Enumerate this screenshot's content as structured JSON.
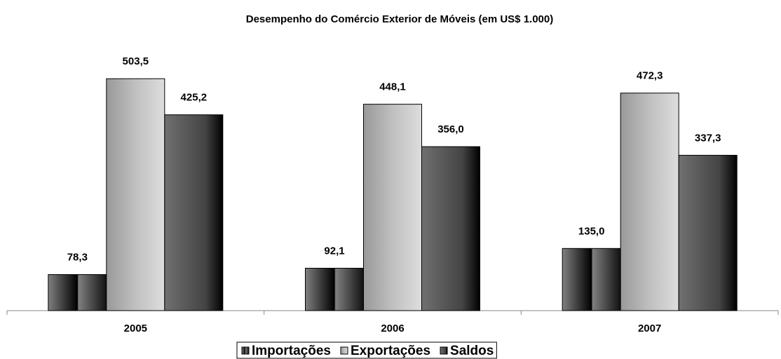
{
  "chart_data": {
    "type": "bar",
    "title": "Desempenho do Comércio Exterior de Móveis (em US$ 1.000)",
    "categories": [
      "2005",
      "2006",
      "2007"
    ],
    "series": [
      {
        "name": "Importações",
        "color": "#808080",
        "values": [
          78.3,
          92.1,
          135.0
        ],
        "value_labels": [
          "78,3",
          "92,1",
          "135,0"
        ]
      },
      {
        "name": "Exportações",
        "color": "#c0c0c0",
        "values": [
          503.5,
          448.1,
          472.3
        ],
        "value_labels": [
          "503,5",
          "448,1",
          "472,3"
        ]
      },
      {
        "name": "Saldos",
        "color": "#707070",
        "values": [
          425.2,
          356.0,
          337.3
        ],
        "value_labels": [
          "425,2",
          "356,0",
          "337,3"
        ]
      }
    ],
    "ylim": [
      0,
      580
    ],
    "legend": "bottom"
  }
}
